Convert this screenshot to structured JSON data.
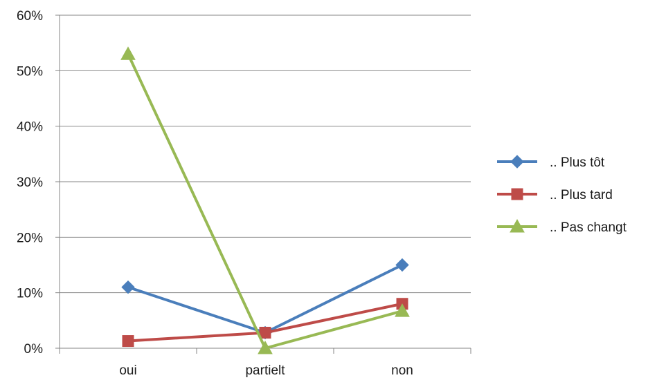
{
  "chart_data": {
    "type": "line",
    "title": "",
    "xlabel": "",
    "ylabel": "",
    "categories": [
      "oui",
      "partielt",
      "non"
    ],
    "ylim": [
      0,
      0.6
    ],
    "yticks": [
      "0%",
      "10%",
      "20%",
      "30%",
      "40%",
      "50%",
      "60%"
    ],
    "grid": true,
    "legend_position": "right",
    "series": [
      {
        "name": ".. Plus tôt",
        "values": [
          0.11,
          0.028,
          0.15
        ],
        "color": "#4a7ebb",
        "marker": "diamond"
      },
      {
        "name": ".. Plus tard",
        "values": [
          0.013,
          0.028,
          0.08
        ],
        "color": "#be4b48",
        "marker": "square"
      },
      {
        "name": ".. Pas changt",
        "values": [
          0.53,
          0.0,
          0.067
        ],
        "color": "#98b954",
        "marker": "triangle"
      }
    ]
  }
}
